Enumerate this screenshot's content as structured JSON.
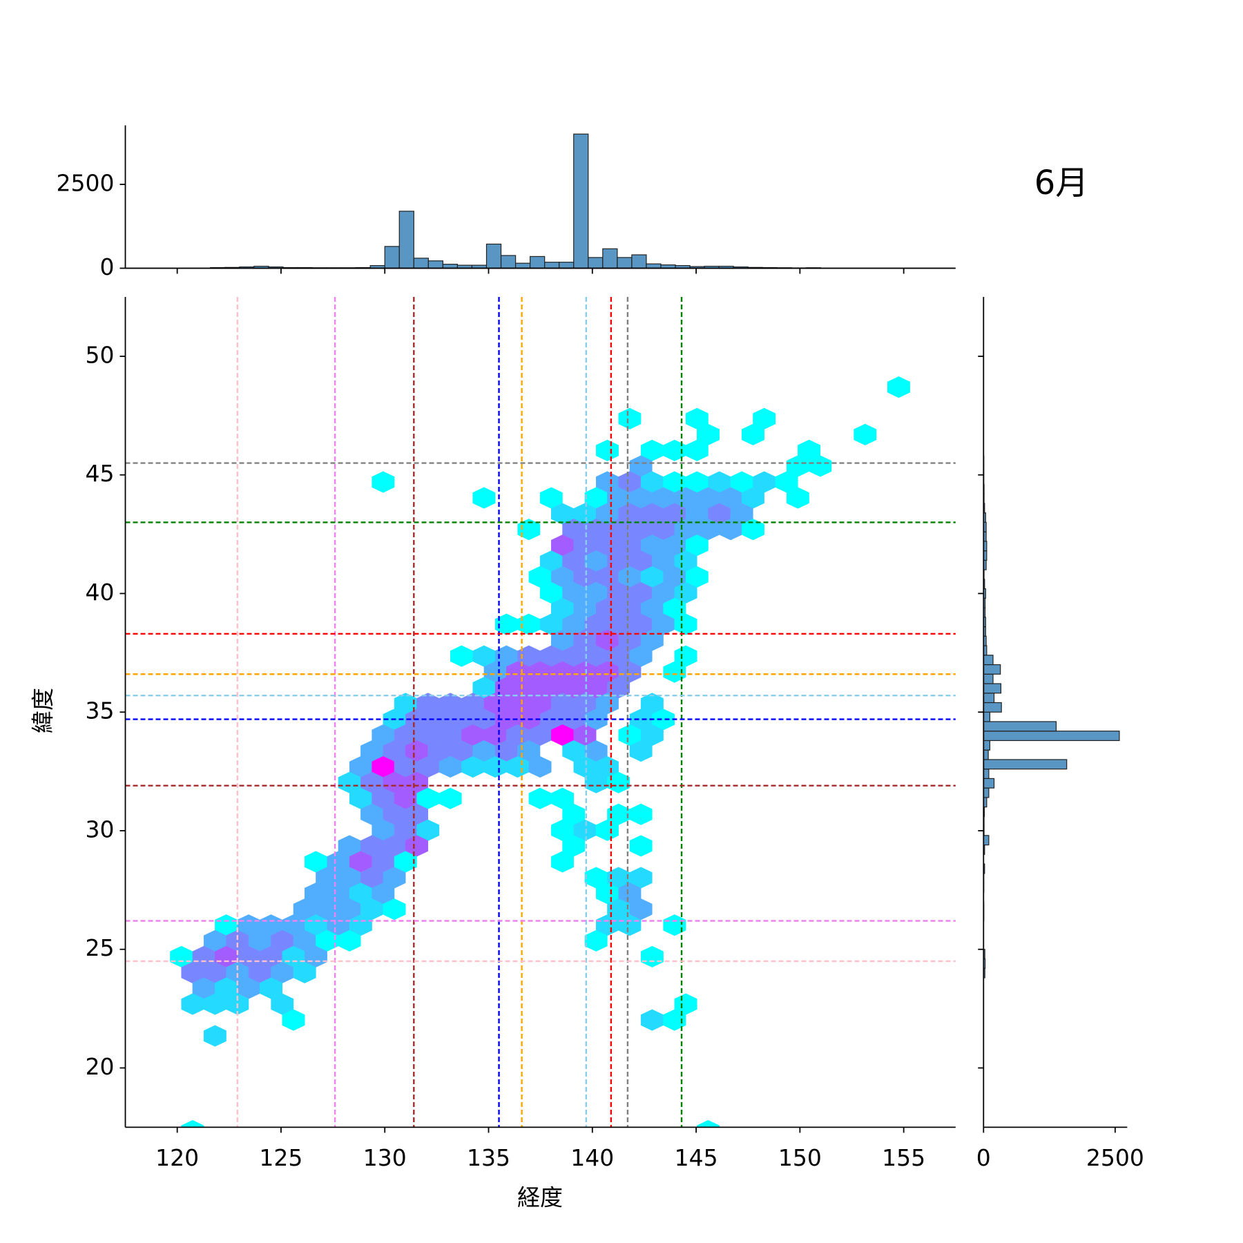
{
  "chart_data": {
    "type": "hexbin",
    "title": "6月",
    "x_label": "経度",
    "y_label": "緯度",
    "xlim": [
      117.5,
      157.5
    ],
    "ylim": [
      17.5,
      52.5
    ],
    "xticks": [
      120,
      125,
      130,
      135,
      140,
      145,
      150,
      155
    ],
    "yticks": [
      20,
      25,
      30,
      35,
      40,
      45,
      50
    ],
    "color_scale": "log",
    "cmap": [
      "#00ffff",
      "#ff00ff"
    ],
    "hexbins": [
      {
        "y": 48.7,
        "x": [
          154.76
        ],
        "counts": [
          1
        ]
      },
      {
        "y": 47.37,
        "x": [
          141.8,
          145.04,
          148.28
        ],
        "counts": [
          1,
          1,
          1
        ]
      },
      {
        "y": 46.7,
        "x": [
          145.58,
          147.74,
          153.14
        ],
        "counts": [
          1,
          1,
          1
        ]
      },
      {
        "y": 46.03,
        "x": [
          140.72,
          142.88,
          143.96,
          145.04,
          150.44
        ],
        "counts": [
          1,
          1,
          1,
          1,
          1
        ]
      },
      {
        "y": 45.37,
        "x": [
          142.34,
          149.9,
          150.98
        ],
        "counts": [
          12,
          1,
          1
        ]
      },
      {
        "y": 44.7,
        "x": [
          129.92,
          140.72,
          141.8,
          142.88,
          143.96,
          145.04,
          146.12,
          147.2,
          148.28,
          149.36
        ],
        "counts": [
          1,
          12,
          40,
          3,
          1,
          1,
          3,
          1,
          3,
          1
        ]
      },
      {
        "y": 44.03,
        "x": [
          134.78,
          138.02,
          140.18,
          141.26,
          142.34,
          143.42,
          144.5,
          145.58,
          146.66,
          147.74,
          149.9
        ],
        "counts": [
          1,
          1,
          1,
          12,
          12,
          12,
          12,
          12,
          12,
          3,
          1
        ]
      },
      {
        "y": 43.36,
        "x": [
          138.56,
          139.64,
          140.72,
          141.8,
          142.88,
          143.96,
          145.04,
          146.12,
          147.2
        ],
        "counts": [
          3,
          3,
          12,
          40,
          40,
          40,
          12,
          40,
          12
        ]
      },
      {
        "y": 42.7,
        "x": [
          136.94,
          139.1,
          140.18,
          141.26,
          142.34,
          143.42,
          144.5,
          145.58,
          146.66,
          147.74
        ],
        "counts": [
          1,
          40,
          40,
          40,
          40,
          40,
          12,
          12,
          12,
          1
        ]
      },
      {
        "y": 42.03,
        "x": [
          138.56,
          139.64,
          140.72,
          141.8,
          142.88,
          143.96,
          145.04
        ],
        "counts": [
          150,
          40,
          40,
          40,
          12,
          12,
          1
        ]
      },
      {
        "y": 41.36,
        "x": [
          138.02,
          139.1,
          140.18,
          141.26,
          142.34,
          143.42,
          144.5
        ],
        "counts": [
          3,
          40,
          12,
          40,
          40,
          12,
          3
        ]
      },
      {
        "y": 40.7,
        "x": [
          137.48,
          138.56,
          139.64,
          140.72,
          141.8,
          142.88,
          143.96,
          145.04
        ],
        "counts": [
          1,
          12,
          40,
          40,
          12,
          3,
          12,
          1
        ]
      },
      {
        "y": 40.03,
        "x": [
          138.02,
          139.1,
          140.18,
          141.26,
          142.34,
          143.42,
          144.5
        ],
        "counts": [
          1,
          12,
          12,
          40,
          40,
          12,
          3
        ]
      },
      {
        "y": 39.36,
        "x": [
          138.56,
          139.64,
          140.72,
          141.8,
          142.88,
          143.96
        ],
        "counts": [
          3,
          12,
          40,
          40,
          12,
          1
        ]
      },
      {
        "y": 38.7,
        "x": [
          135.86,
          136.94,
          138.02,
          139.1,
          140.18,
          141.26,
          142.34,
          143.42,
          144.5
        ],
        "counts": [
          1,
          1,
          3,
          12,
          40,
          40,
          40,
          12,
          1
        ]
      },
      {
        "y": 38.03,
        "x": [
          138.56,
          139.64,
          140.72,
          141.8,
          142.88
        ],
        "counts": [
          12,
          40,
          150,
          40,
          12
        ]
      },
      {
        "y": 37.36,
        "x": [
          133.7,
          134.78,
          135.86,
          136.94,
          138.02,
          139.1,
          140.18,
          141.26,
          142.34,
          144.5
        ],
        "counts": [
          1,
          3,
          12,
          40,
          40,
          40,
          40,
          40,
          12,
          1
        ]
      },
      {
        "y": 36.69,
        "x": [
          135.32,
          136.4,
          137.48,
          138.56,
          139.64,
          140.72,
          141.8,
          143.96
        ],
        "counts": [
          12,
          150,
          150,
          150,
          150,
          150,
          40,
          1
        ]
      },
      {
        "y": 36.03,
        "x": [
          134.78,
          135.86,
          136.94,
          138.02,
          139.1,
          140.18,
          141.26
        ],
        "counts": [
          3,
          150,
          150,
          150,
          150,
          150,
          40
        ]
      },
      {
        "y": 35.36,
        "x": [
          131.0,
          132.08,
          133.16,
          134.24,
          135.32,
          136.4,
          137.48,
          138.56,
          139.64,
          140.72,
          142.88
        ],
        "counts": [
          3,
          40,
          40,
          40,
          150,
          150,
          150,
          40,
          40,
          12,
          3
        ]
      },
      {
        "y": 34.69,
        "x": [
          130.46,
          131.54,
          132.62,
          133.7,
          134.78,
          135.86,
          136.94,
          138.02,
          139.1,
          140.18,
          142.34,
          143.42
        ],
        "counts": [
          3,
          40,
          40,
          40,
          40,
          150,
          150,
          40,
          40,
          12,
          3,
          1
        ]
      },
      {
        "y": 34.03,
        "x": [
          129.92,
          131.0,
          132.08,
          133.16,
          134.24,
          135.32,
          136.4,
          137.48,
          138.56,
          139.64,
          141.8,
          142.88
        ],
        "counts": [
          12,
          40,
          40,
          40,
          150,
          150,
          40,
          40,
          2500,
          150,
          1,
          3
        ]
      },
      {
        "y": 33.36,
        "x": [
          129.38,
          130.46,
          131.54,
          132.62,
          133.7,
          134.78,
          135.86,
          136.94,
          139.1,
          140.18,
          142.34
        ],
        "counts": [
          12,
          40,
          150,
          40,
          40,
          12,
          40,
          12,
          3,
          12,
          3
        ]
      },
      {
        "y": 32.69,
        "x": [
          128.84,
          129.92,
          131.0,
          132.08,
          133.16,
          134.24,
          135.32,
          136.4,
          137.48,
          139.64,
          140.72
        ],
        "counts": [
          12,
          2500,
          40,
          40,
          12,
          3,
          3,
          3,
          12,
          3,
          3
        ]
      },
      {
        "y": 32.03,
        "x": [
          128.3,
          129.38,
          130.46,
          131.54,
          140.18,
          141.26
        ],
        "counts": [
          3,
          40,
          150,
          150,
          3,
          1
        ]
      },
      {
        "y": 31.36,
        "x": [
          128.84,
          129.92,
          131.0,
          132.08,
          133.16,
          137.48,
          138.56
        ],
        "counts": [
          3,
          40,
          150,
          1,
          1,
          1,
          1
        ]
      },
      {
        "y": 30.69,
        "x": [
          129.38,
          130.46,
          131.54,
          139.1,
          141.26,
          142.34
        ],
        "counts": [
          12,
          40,
          40,
          1,
          1,
          1
        ]
      },
      {
        "y": 30.02,
        "x": [
          129.92,
          131.0,
          132.08,
          138.56,
          139.64,
          140.72
        ],
        "counts": [
          12,
          40,
          3,
          1,
          3,
          1
        ]
      },
      {
        "y": 29.36,
        "x": [
          128.3,
          129.38,
          130.46,
          131.54,
          139.1,
          142.34
        ],
        "counts": [
          12,
          40,
          40,
          150,
          1,
          1
        ]
      },
      {
        "y": 28.69,
        "x": [
          126.68,
          127.76,
          128.84,
          129.92,
          131.0,
          138.56
        ],
        "counts": [
          1,
          12,
          150,
          40,
          1,
          1
        ]
      },
      {
        "y": 28.02,
        "x": [
          127.22,
          128.3,
          129.38,
          130.46,
          140.18,
          141.26,
          142.34
        ],
        "counts": [
          12,
          12,
          40,
          12,
          1,
          3,
          3
        ]
      },
      {
        "y": 27.36,
        "x": [
          126.68,
          127.76,
          128.84,
          129.92,
          140.72,
          141.8
        ],
        "counts": [
          12,
          12,
          3,
          12,
          1,
          12
        ]
      },
      {
        "y": 26.69,
        "x": [
          126.14,
          127.22,
          128.3,
          129.38,
          130.46,
          141.26,
          142.34
        ],
        "counts": [
          12,
          12,
          12,
          3,
          1,
          3,
          12
        ]
      },
      {
        "y": 26.02,
        "x": [
          122.36,
          123.44,
          124.52,
          125.6,
          126.68,
          127.76,
          128.84,
          140.72,
          141.8,
          143.96
        ],
        "counts": [
          1,
          12,
          12,
          12,
          3,
          12,
          3,
          3,
          3,
          1
        ]
      },
      {
        "y": 25.36,
        "x": [
          121.82,
          122.9,
          123.98,
          125.06,
          126.14,
          127.22,
          128.3,
          140.18
        ],
        "counts": [
          12,
          40,
          12,
          40,
          12,
          1,
          1,
          1
        ]
      },
      {
        "y": 24.69,
        "x": [
          120.2,
          121.28,
          122.36,
          123.44,
          124.52,
          125.6,
          126.68,
          142.88
        ],
        "counts": [
          1,
          40,
          150,
          40,
          40,
          3,
          12,
          1
        ]
      },
      {
        "y": 24.02,
        "x": [
          120.74,
          121.82,
          122.9,
          123.98,
          125.06,
          126.14
        ],
        "counts": [
          40,
          40,
          12,
          40,
          12,
          3
        ]
      },
      {
        "y": 23.36,
        "x": [
          121.28,
          122.36,
          123.44,
          124.52
        ],
        "counts": [
          12,
          3,
          12,
          3
        ]
      },
      {
        "y": 22.69,
        "x": [
          120.74,
          121.82,
          122.9,
          125.06,
          144.5
        ],
        "counts": [
          3,
          3,
          3,
          3,
          1
        ]
      },
      {
        "y": 22.02,
        "x": [
          125.6,
          142.88,
          143.96
        ],
        "counts": [
          1,
          3,
          1
        ]
      },
      {
        "y": 21.35,
        "x": [
          121.82
        ],
        "counts": [
          3
        ]
      },
      {
        "y": 17.35,
        "x": [
          120.74,
          145.58
        ],
        "counts": [
          1,
          1
        ]
      }
    ],
    "vlines": [
      {
        "x": 122.9,
        "color": "pink"
      },
      {
        "x": 127.6,
        "color": "violet"
      },
      {
        "x": 131.4,
        "color": "brown"
      },
      {
        "x": 135.5,
        "color": "blue"
      },
      {
        "x": 136.6,
        "color": "orange"
      },
      {
        "x": 139.7,
        "color": "skyblue"
      },
      {
        "x": 140.9,
        "color": "red"
      },
      {
        "x": 141.7,
        "color": "gray"
      },
      {
        "x": 144.3,
        "color": "green"
      }
    ],
    "hlines": [
      {
        "y": 45.5,
        "color": "gray"
      },
      {
        "y": 43.0,
        "color": "green"
      },
      {
        "y": 38.3,
        "color": "red"
      },
      {
        "y": 36.6,
        "color": "orange"
      },
      {
        "y": 35.7,
        "color": "skyblue"
      },
      {
        "y": 34.7,
        "color": "blue"
      },
      {
        "y": 31.9,
        "color": "brown"
      },
      {
        "y": 26.2,
        "color": "violet"
      },
      {
        "y": 24.5,
        "color": "pink"
      }
    ],
    "top_hist": {
      "color": "#5a96c3",
      "ylim": [
        0,
        4260
      ],
      "yticks": [
        0,
        2500
      ],
      "bins": [
        120.2,
        120.9,
        121.6,
        122.3,
        123.0,
        123.7,
        124.4,
        125.1,
        125.8,
        126.5,
        127.2,
        127.9,
        128.6,
        129.3,
        130.0,
        130.7,
        131.4,
        132.1,
        132.8,
        133.5,
        134.2,
        134.9,
        135.6,
        136.3,
        137.0,
        137.7,
        138.4,
        139.1,
        139.8,
        140.5,
        141.2,
        141.9,
        142.6,
        143.3,
        144.0,
        144.7,
        145.4,
        146.1,
        146.8,
        147.5,
        148.2,
        148.9,
        149.6,
        150.3,
        151.0,
        151.7,
        152.4,
        153.1,
        153.8,
        154.5,
        155.2
      ],
      "counts": [
        5,
        5,
        20,
        25,
        40,
        60,
        40,
        20,
        20,
        15,
        15,
        15,
        20,
        80,
        650,
        1700,
        300,
        220,
        120,
        90,
        90,
        720,
        380,
        150,
        350,
        180,
        180,
        4000,
        320,
        580,
        320,
        400,
        130,
        100,
        80,
        50,
        60,
        60,
        40,
        25,
        20,
        15,
        10,
        15,
        5,
        5,
        0,
        5,
        0,
        5
      ]
    },
    "right_hist": {
      "color": "#5a96c3",
      "xlim": [
        0,
        2730
      ],
      "xticks": [
        0,
        2500
      ],
      "bins": [
        22.2,
        22.6,
        23.0,
        23.4,
        23.8,
        24.2,
        24.6,
        25.0,
        25.4,
        25.8,
        26.2,
        26.6,
        27.0,
        27.4,
        27.8,
        28.2,
        28.6,
        29.0,
        29.4,
        29.8,
        30.2,
        30.6,
        31.0,
        31.4,
        31.8,
        32.2,
        32.6,
        33.0,
        33.4,
        33.8,
        34.2,
        34.6,
        35.0,
        35.4,
        35.8,
        36.2,
        36.6,
        37.0,
        37.4,
        37.8,
        38.2,
        38.6,
        39.0,
        39.4,
        39.8,
        40.2,
        40.6,
        41.0,
        41.4,
        41.8,
        42.2,
        42.6,
        43.0,
        43.4,
        43.8,
        44.2,
        44.6,
        45.0,
        45.4,
        45.8,
        46.2
      ],
      "counts": [
        0,
        0,
        0,
        0,
        25,
        30,
        25,
        0,
        0,
        0,
        5,
        5,
        0,
        5,
        5,
        20,
        0,
        20,
        100,
        10,
        10,
        15,
        60,
        100,
        200,
        100,
        1580,
        90,
        120,
        2580,
        1380,
        120,
        340,
        200,
        330,
        180,
        320,
        180,
        60,
        50,
        40,
        40,
        30,
        30,
        40,
        20,
        10,
        50,
        60,
        60,
        50,
        50,
        40,
        20,
        10,
        10,
        5,
        5,
        5,
        0
      ]
    }
  }
}
